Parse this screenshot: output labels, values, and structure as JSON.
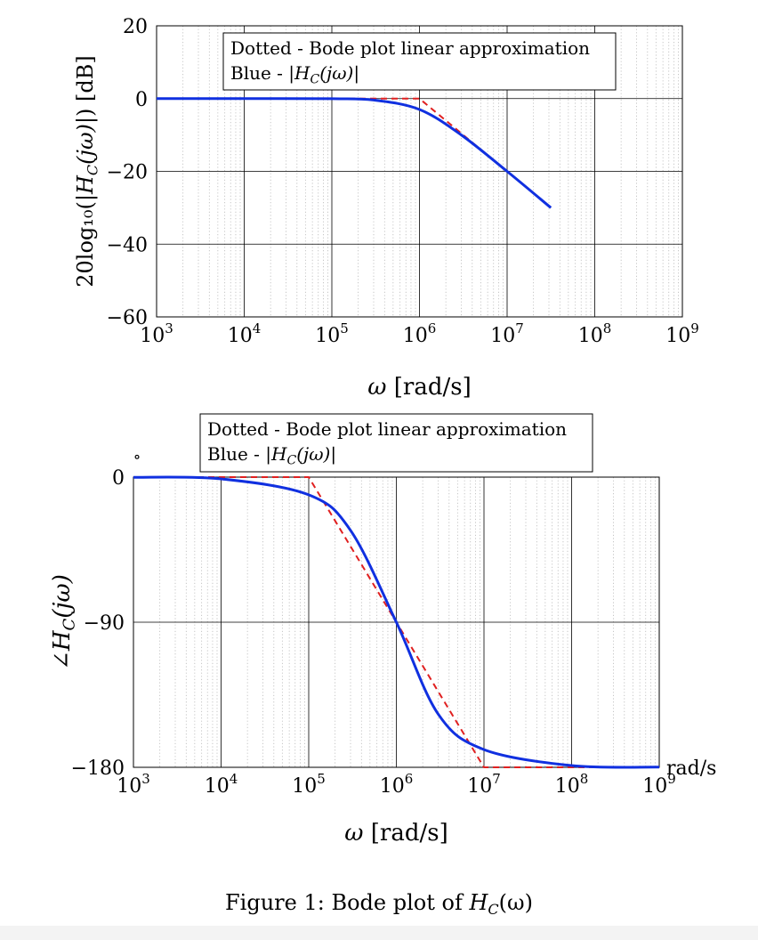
{
  "figure": {
    "caption_prefix": "Figure 1: Bode plot of ",
    "caption_symbol": "H",
    "caption_subscript": "C",
    "caption_suffix": "(ω)"
  },
  "colors": {
    "exact_curve": "#1030e0",
    "approximation": "#e02020",
    "major_grid": "#000000",
    "minor_grid": "#b8b8b8"
  },
  "chart_data": [
    {
      "type": "line",
      "x_scale": "log",
      "grid": "major and minor",
      "xlim": [
        1000,
        1000000000
      ],
      "ylim": [
        -60,
        20
      ],
      "x_ticks": [
        1000,
        10000,
        100000,
        1000000,
        10000000,
        100000000,
        1000000000
      ],
      "y_ticks": [
        20,
        0,
        -20,
        -40,
        -60
      ],
      "xlabel": "ω [rad/s]",
      "ylabel": "20log₁₀(|H_C(jω)|) [dB]",
      "legend_line1": "Dotted - Bode plot linear approximation",
      "legend_line2": "Blue - |H_C(jω)|",
      "legend_position": "top-center",
      "series": [
        {
          "style": "solid-blue",
          "x": [
            1000,
            10000,
            100000,
            300000,
            1000000,
            3000000,
            10000000,
            31600000
          ],
          "y": [
            0,
            0,
            -0.04,
            -0.4,
            -3.0,
            -10.0,
            -20.0,
            -30.0
          ]
        },
        {
          "style": "dashed-red",
          "x": [
            1000,
            1000000,
            31600000
          ],
          "y": [
            0,
            0,
            -30.0
          ]
        }
      ]
    },
    {
      "type": "line",
      "x_scale": "log",
      "grid": "major and minor",
      "xlim": [
        1000,
        1000000000
      ],
      "ylim": [
        -180,
        0
      ],
      "x_ticks": [
        1000,
        10000,
        100000,
        1000000,
        10000000,
        100000000,
        1000000000
      ],
      "y_ticks": [
        0,
        -90,
        -180
      ],
      "y_unit_mark": "∘",
      "x_unit_mark": "rad/s",
      "xlabel": "ω [rad/s]",
      "ylabel": "∠H_C(jω)",
      "legend_line1": "Dotted - Bode plot linear approximation",
      "legend_line2": "Blue - |H_C(jω)|",
      "legend_position": "top-center",
      "series": [
        {
          "style": "solid-blue",
          "x": [
            1000,
            10000,
            100000,
            300000,
            1000000,
            3000000,
            10000000,
            100000000,
            1000000000
          ],
          "y": [
            -0.1,
            -1.1,
            -11.0,
            -33.0,
            -90.0,
            -147.0,
            -169.0,
            -178.9,
            -179.9
          ]
        },
        {
          "style": "dashed-red",
          "x": [
            1000,
            100000,
            10000000,
            1000000000
          ],
          "y": [
            0,
            0,
            -180,
            -180
          ]
        }
      ]
    }
  ]
}
